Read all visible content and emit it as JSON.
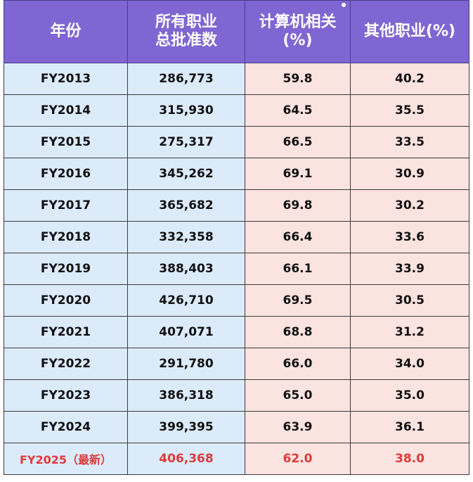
{
  "chart_data": {
    "type": "table",
    "columns": [
      [
        "年份"
      ],
      [
        "所有职业",
        "总批准数"
      ],
      [
        "计算机相关",
        "(%)"
      ],
      [
        "其他职业(%)"
      ]
    ],
    "rows": [
      {
        "year": "FY2013",
        "total": "286,773",
        "computer": "59.8",
        "other": "40.2"
      },
      {
        "year": "FY2014",
        "total": "315,930",
        "computer": "64.5",
        "other": "35.5"
      },
      {
        "year": "FY2015",
        "total": "275,317",
        "computer": "66.5",
        "other": "33.5"
      },
      {
        "year": "FY2016",
        "total": "345,262",
        "computer": "69.1",
        "other": "30.9"
      },
      {
        "year": "FY2017",
        "total": "365,682",
        "computer": "69.8",
        "other": "30.2"
      },
      {
        "year": "FY2018",
        "total": "332,358",
        "computer": "66.4",
        "other": "33.6"
      },
      {
        "year": "FY2019",
        "total": "388,403",
        "computer": "66.1",
        "other": "33.9"
      },
      {
        "year": "FY2020",
        "total": "426,710",
        "computer": "69.5",
        "other": "30.5"
      },
      {
        "year": "FY2021",
        "total": "407,071",
        "computer": "68.8",
        "other": "31.2"
      },
      {
        "year": "FY2022",
        "total": "291,780",
        "computer": "66.0",
        "other": "34.0"
      },
      {
        "year": "FY2023",
        "total": "386,318",
        "computer": "65.0",
        "other": "35.0"
      },
      {
        "year": "FY2024",
        "total": "399,395",
        "computer": "63.9",
        "other": "36.1"
      },
      {
        "year": "FY2025（最新）",
        "total": "406,368",
        "computer": "62.0",
        "other": "38.0",
        "highlight": true
      }
    ],
    "header_color": "#7f66d2",
    "left_cell_color": "#dcebfa",
    "right_cell_color": "#fbe3df",
    "highlight_color": "#e03a3a"
  }
}
